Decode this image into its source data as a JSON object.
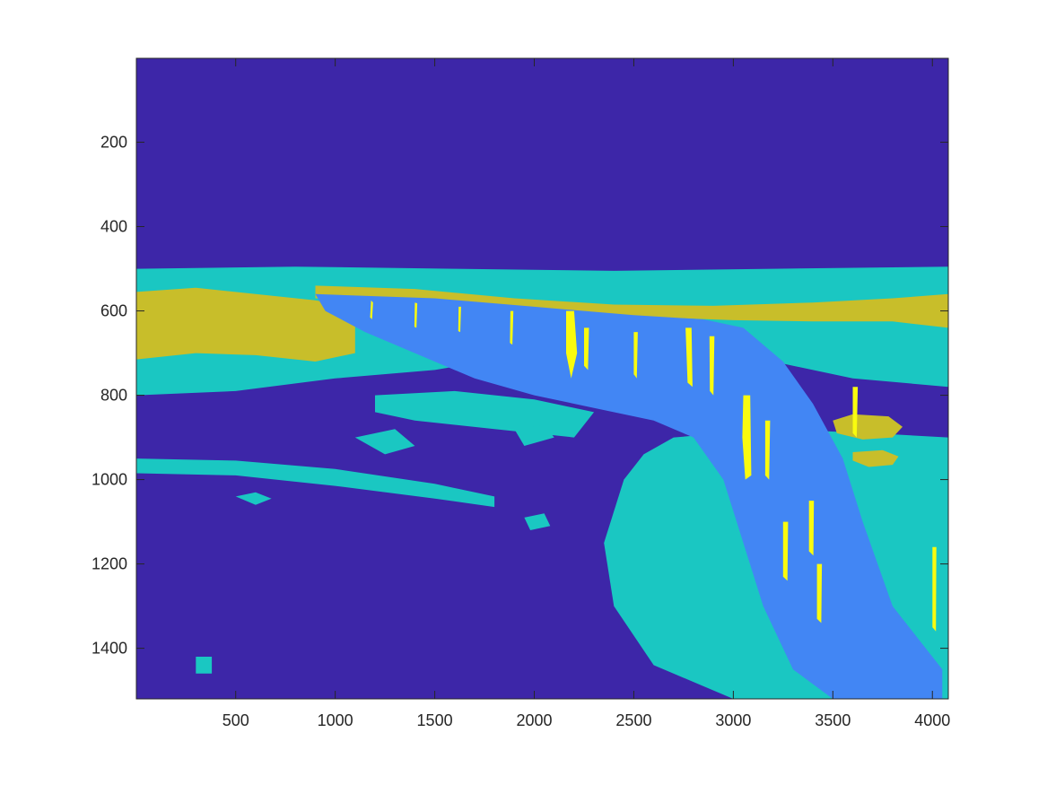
{
  "chart_data": {
    "type": "heatmap",
    "subtype": "filled-contour",
    "title": "",
    "xlabel": "",
    "ylabel": "",
    "xlim": [
      1,
      4080
    ],
    "ylim": [
      1,
      1520
    ],
    "y_reversed": true,
    "grid": false,
    "legend": "none",
    "x_ticks": [
      500,
      1000,
      1500,
      2000,
      2500,
      3000,
      3500,
      4000
    ],
    "x_tick_labels": [
      "500",
      "1000",
      "1500",
      "2000",
      "2500",
      "3000",
      "3500",
      "4000"
    ],
    "y_ticks": [
      200,
      400,
      600,
      800,
      1000,
      1200,
      1400
    ],
    "y_tick_labels": [
      "200",
      "400",
      "600",
      "800",
      "1000",
      "1200",
      "1400"
    ],
    "levels": [
      {
        "level": 0,
        "color": "#3d26a8"
      },
      {
        "level": 1,
        "color": "#4286f4"
      },
      {
        "level": 2,
        "color": "#1ac7c2"
      },
      {
        "level": 3,
        "color": "#c8be2a"
      },
      {
        "level": 4,
        "color": "#f9fb0e"
      }
    ],
    "regions": [
      {
        "level": 2,
        "kind": "band",
        "points": [
          [
            0,
            500
          ],
          [
            800,
            495
          ],
          [
            1600,
            500
          ],
          [
            2400,
            505
          ],
          [
            3200,
            500
          ],
          [
            4080,
            495
          ],
          [
            4080,
            780
          ],
          [
            3600,
            760
          ],
          [
            3000,
            700
          ],
          [
            2500,
            690
          ],
          [
            2000,
            700
          ],
          [
            1500,
            740
          ],
          [
            1000,
            760
          ],
          [
            500,
            790
          ],
          [
            0,
            800
          ]
        ]
      },
      {
        "level": 2,
        "kind": "band",
        "points": [
          [
            0,
            950
          ],
          [
            500,
            955
          ],
          [
            1000,
            975
          ],
          [
            1500,
            1010
          ],
          [
            1800,
            1040
          ],
          [
            1800,
            1065
          ],
          [
            1500,
            1045
          ],
          [
            1000,
            1015
          ],
          [
            500,
            990
          ],
          [
            0,
            985
          ]
        ]
      },
      {
        "level": 2,
        "kind": "band",
        "points": [
          [
            2700,
            900
          ],
          [
            3200,
            880
          ],
          [
            3700,
            890
          ],
          [
            4080,
            900
          ],
          [
            4080,
            1520
          ],
          [
            3500,
            1520
          ],
          [
            3000,
            1520
          ],
          [
            2600,
            1440
          ],
          [
            2400,
            1300
          ],
          [
            2350,
            1150
          ],
          [
            2450,
            1000
          ],
          [
            2550,
            940
          ]
        ]
      },
      {
        "level": 2,
        "kind": "band",
        "points": [
          [
            1200,
            800
          ],
          [
            1600,
            790
          ],
          [
            2000,
            810
          ],
          [
            2300,
            840
          ],
          [
            2200,
            900
          ],
          [
            1800,
            880
          ],
          [
            1400,
            860
          ],
          [
            1200,
            840
          ]
        ]
      },
      {
        "level": 3,
        "kind": "band",
        "points": [
          [
            0,
            555
          ],
          [
            300,
            545
          ],
          [
            600,
            560
          ],
          [
            900,
            575
          ],
          [
            1100,
            590
          ],
          [
            1100,
            700
          ],
          [
            900,
            720
          ],
          [
            600,
            705
          ],
          [
            300,
            700
          ],
          [
            0,
            715
          ]
        ]
      },
      {
        "level": 3,
        "kind": "band",
        "points": [
          [
            900,
            540
          ],
          [
            1400,
            548
          ],
          [
            1900,
            570
          ],
          [
            2400,
            585
          ],
          [
            2900,
            588
          ],
          [
            3400,
            580
          ],
          [
            3800,
            570
          ],
          [
            4080,
            560
          ],
          [
            4080,
            640
          ],
          [
            3800,
            625
          ],
          [
            3400,
            625
          ],
          [
            3000,
            622
          ],
          [
            2600,
            615
          ],
          [
            2100,
            605
          ],
          [
            1600,
            590
          ],
          [
            1200,
            575
          ],
          [
            900,
            570
          ]
        ]
      },
      {
        "level": 3,
        "kind": "blob",
        "points": [
          [
            3500,
            860
          ],
          [
            3600,
            845
          ],
          [
            3780,
            850
          ],
          [
            3850,
            875
          ],
          [
            3800,
            900
          ],
          [
            3650,
            905
          ],
          [
            3520,
            890
          ]
        ]
      },
      {
        "level": 3,
        "kind": "blob",
        "points": [
          [
            3600,
            935
          ],
          [
            3750,
            930
          ],
          [
            3830,
            945
          ],
          [
            3800,
            965
          ],
          [
            3680,
            970
          ],
          [
            3600,
            955
          ]
        ]
      },
      {
        "level": 1,
        "kind": "wedge",
        "points": [
          [
            900,
            560
          ],
          [
            1500,
            570
          ],
          [
            2000,
            590
          ],
          [
            2500,
            610
          ],
          [
            2850,
            620
          ],
          [
            3050,
            640
          ],
          [
            3250,
            720
          ],
          [
            3400,
            820
          ],
          [
            3550,
            950
          ],
          [
            3650,
            1100
          ],
          [
            3800,
            1300
          ],
          [
            4050,
            1450
          ],
          [
            4050,
            1520
          ],
          [
            3500,
            1520
          ],
          [
            3300,
            1450
          ],
          [
            3150,
            1300
          ],
          [
            3050,
            1150
          ],
          [
            2950,
            1000
          ],
          [
            2800,
            900
          ],
          [
            2600,
            860
          ],
          [
            2300,
            830
          ],
          [
            2000,
            800
          ],
          [
            1700,
            760
          ],
          [
            1400,
            700
          ],
          [
            1150,
            650
          ],
          [
            950,
            600
          ]
        ]
      },
      {
        "level": 4,
        "kind": "streak",
        "points": [
          [
            1180,
            575
          ],
          [
            1190,
            580
          ],
          [
            1185,
            620
          ],
          [
            1175,
            615
          ]
        ]
      },
      {
        "level": 4,
        "kind": "streak",
        "points": [
          [
            1400,
            580
          ],
          [
            1412,
            582
          ],
          [
            1408,
            640
          ],
          [
            1398,
            638
          ]
        ]
      },
      {
        "level": 4,
        "kind": "streak",
        "points": [
          [
            1620,
            590
          ],
          [
            1632,
            590
          ],
          [
            1628,
            650
          ],
          [
            1618,
            648
          ]
        ]
      },
      {
        "level": 4,
        "kind": "streak",
        "points": [
          [
            1880,
            600
          ],
          [
            1895,
            600
          ],
          [
            1890,
            680
          ],
          [
            1878,
            676
          ]
        ]
      },
      {
        "level": 4,
        "kind": "streak",
        "points": [
          [
            2160,
            600
          ],
          [
            2200,
            600
          ],
          [
            2215,
            700
          ],
          [
            2185,
            760
          ],
          [
            2160,
            700
          ]
        ]
      },
      {
        "level": 4,
        "kind": "streak",
        "points": [
          [
            2250,
            640
          ],
          [
            2275,
            640
          ],
          [
            2270,
            740
          ],
          [
            2250,
            730
          ]
        ]
      },
      {
        "level": 4,
        "kind": "streak",
        "points": [
          [
            2500,
            650
          ],
          [
            2520,
            650
          ],
          [
            2515,
            760
          ],
          [
            2500,
            750
          ]
        ]
      },
      {
        "level": 4,
        "kind": "streak",
        "points": [
          [
            2760,
            640
          ],
          [
            2790,
            640
          ],
          [
            2795,
            780
          ],
          [
            2770,
            770
          ]
        ]
      },
      {
        "level": 4,
        "kind": "streak",
        "points": [
          [
            2880,
            660
          ],
          [
            2905,
            660
          ],
          [
            2900,
            800
          ],
          [
            2882,
            790
          ]
        ]
      },
      {
        "level": 4,
        "kind": "streak",
        "points": [
          [
            3050,
            800
          ],
          [
            3085,
            800
          ],
          [
            3090,
            990
          ],
          [
            3060,
            1000
          ],
          [
            3045,
            900
          ]
        ]
      },
      {
        "level": 4,
        "kind": "streak",
        "points": [
          [
            3160,
            860
          ],
          [
            3185,
            860
          ],
          [
            3180,
            1000
          ],
          [
            3160,
            990
          ]
        ]
      },
      {
        "level": 4,
        "kind": "streak",
        "points": [
          [
            3250,
            1100
          ],
          [
            3275,
            1100
          ],
          [
            3272,
            1240
          ],
          [
            3250,
            1230
          ]
        ]
      },
      {
        "level": 4,
        "kind": "streak",
        "points": [
          [
            3380,
            1050
          ],
          [
            3405,
            1050
          ],
          [
            3402,
            1180
          ],
          [
            3380,
            1170
          ]
        ]
      },
      {
        "level": 4,
        "kind": "streak",
        "points": [
          [
            3420,
            1200
          ],
          [
            3445,
            1200
          ],
          [
            3442,
            1340
          ],
          [
            3420,
            1330
          ]
        ]
      },
      {
        "level": 4,
        "kind": "streak",
        "points": [
          [
            3600,
            780
          ],
          [
            3625,
            780
          ],
          [
            3620,
            900
          ],
          [
            3600,
            890
          ]
        ]
      },
      {
        "level": 4,
        "kind": "streak",
        "points": [
          [
            4000,
            1160
          ],
          [
            4020,
            1160
          ],
          [
            4018,
            1360
          ],
          [
            4000,
            1350
          ]
        ]
      },
      {
        "level": 2,
        "kind": "blob",
        "points": [
          [
            500,
            1040
          ],
          [
            600,
            1030
          ],
          [
            680,
            1045
          ],
          [
            600,
            1060
          ]
        ]
      },
      {
        "level": 2,
        "kind": "blob",
        "points": [
          [
            1100,
            900
          ],
          [
            1300,
            880
          ],
          [
            1400,
            920
          ],
          [
            1250,
            940
          ]
        ]
      },
      {
        "level": 2,
        "kind": "blob",
        "points": [
          [
            1900,
            880
          ],
          [
            2050,
            870
          ],
          [
            2100,
            900
          ],
          [
            1950,
            920
          ]
        ]
      },
      {
        "level": 2,
        "kind": "blob",
        "points": [
          [
            1950,
            1090
          ],
          [
            2050,
            1080
          ],
          [
            2080,
            1110
          ],
          [
            1980,
            1120
          ]
        ]
      },
      {
        "level": 2,
        "kind": "blob",
        "points": [
          [
            300,
            1420
          ],
          [
            380,
            1420
          ],
          [
            380,
            1460
          ],
          [
            300,
            1460
          ]
        ]
      }
    ]
  }
}
